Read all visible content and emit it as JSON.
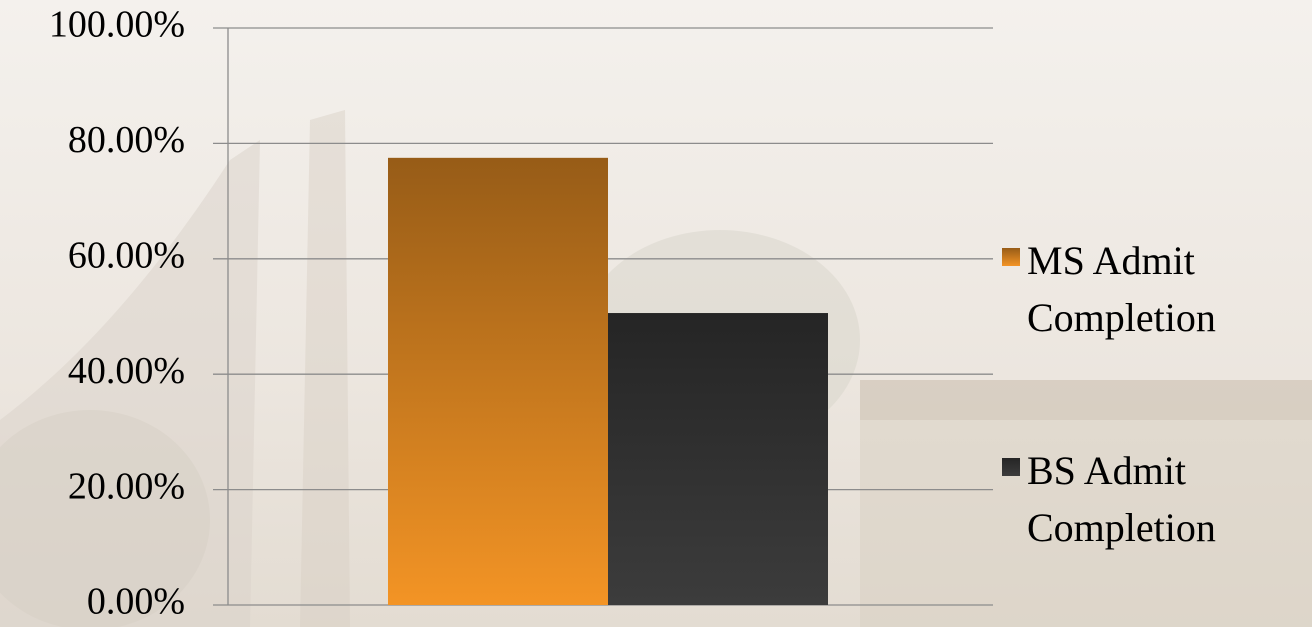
{
  "chart_data": {
    "type": "bar",
    "categories": [
      null
    ],
    "series": [
      {
        "name": "MS Admit Completion",
        "color": "#f39425",
        "values": [
          77.5
        ]
      },
      {
        "name": "BS Admit Completion",
        "color": "#3c3c3c",
        "values": [
          50.6
        ]
      }
    ],
    "ylim": [
      0,
      100
    ],
    "yticks": [
      {
        "value": 0,
        "label": "0.00%"
      },
      {
        "value": 20,
        "label": "20.00%"
      },
      {
        "value": 40,
        "label": "40.00%"
      },
      {
        "value": 60,
        "label": "60.00%"
      },
      {
        "value": 80,
        "label": "80.00%"
      },
      {
        "value": 100,
        "label": "100.00%"
      }
    ],
    "grid": true,
    "legend": "right"
  }
}
